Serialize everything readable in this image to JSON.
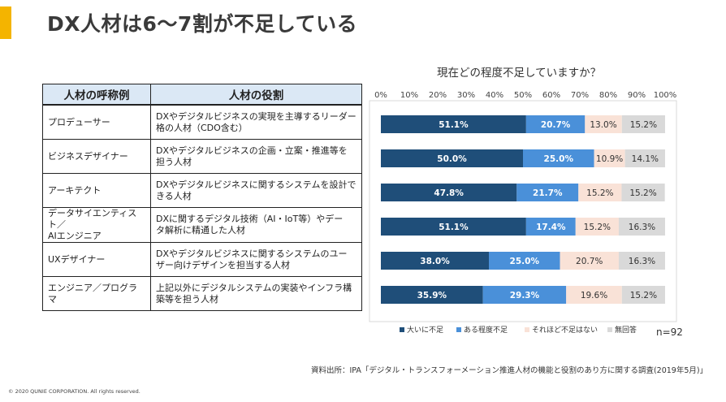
{
  "title": "DX人材は6～7割が不足している",
  "table": {
    "headers": [
      "人材の呼称例",
      "人材の役割"
    ],
    "rows": [
      {
        "name": "プロデューサー",
        "role": [
          "DXやデジタルビジネスの実現を主導するリーダー",
          "格の人材（CDO含む）"
        ]
      },
      {
        "name": "ビジネスデザイナー",
        "role": [
          "DXやデジタルビジネスの企画・立案・推進等を",
          "担う人材"
        ]
      },
      {
        "name": "アーキテクト",
        "role": [
          "DXやデジタルビジネスに関するシステムを設計で",
          "きる人材"
        ]
      },
      {
        "name": [
          "データサイエンティスト／",
          "AIエンジニア"
        ],
        "role": [
          "DXに関するデジタル技術（AI・IoT等）やデー",
          "タ解析に精通した人材"
        ]
      },
      {
        "name": "UXデザイナー",
        "role": [
          "DXやデジタルビジネスに関するシステムのユー",
          "ザー向けデザインを担当する人材"
        ]
      },
      {
        "name": "エンジニア／プログラマ",
        "role": [
          "上記以外にデジタルシステムの実装やインフラ構",
          "築等を担う人材"
        ]
      }
    ]
  },
  "chart_title": "現在どの程度不足していますか？",
  "n_label": "n=92",
  "source": "資料出所：IPA「デジタル・トランスフォーメーション推進人材の機能と役割のあり方に関する調査(2019年5月)」",
  "copyright": "© 2020 QUNIE CORPORATION. All rights reserved.",
  "chart_data": {
    "type": "bar",
    "orientation": "horizontal",
    "stacked": true,
    "title": "現在どの程度不足していますか？",
    "categories": [
      "プロデューサー",
      "ビジネスデザイナー",
      "アーキテクト",
      "データサイエンティスト／AIエンジニア",
      "UXデザイナー",
      "エンジニア／プログラマ"
    ],
    "series": [
      {
        "name": "大いに不足",
        "color": "#1f4e79",
        "values": [
          51.1,
          50.0,
          47.8,
          51.1,
          38.0,
          35.9
        ]
      },
      {
        "name": "ある程度不足",
        "color": "#4a90d9",
        "values": [
          20.7,
          25.0,
          21.7,
          17.4,
          25.0,
          29.3
        ]
      },
      {
        "name": "それほど不足はない",
        "color": "#f9e2d7",
        "values": [
          13.0,
          10.9,
          15.2,
          15.2,
          20.7,
          19.6
        ]
      },
      {
        "name": "無回答",
        "color": "#d9d9d9",
        "values": [
          15.2,
          14.1,
          15.2,
          16.3,
          16.3,
          15.2
        ]
      }
    ],
    "x_ticks": [
      "0%",
      "10%",
      "20%",
      "30%",
      "40%",
      "50%",
      "60%",
      "70%",
      "80%",
      "90%",
      "100%"
    ],
    "xlim": [
      0,
      100
    ],
    "grid": false,
    "legend_position": "bottom"
  }
}
